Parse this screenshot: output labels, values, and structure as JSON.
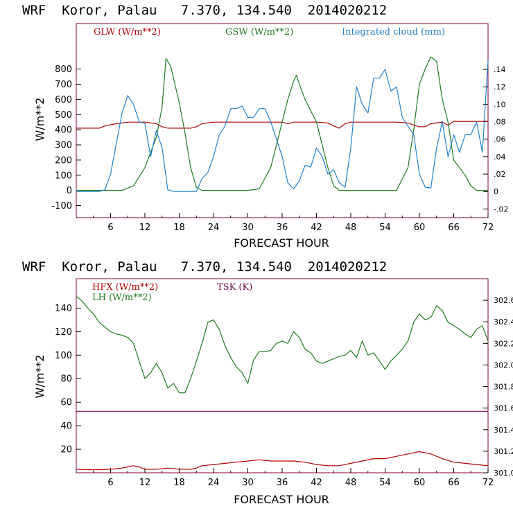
{
  "colors": {
    "red": "#b00000",
    "green": "#1f7a1f",
    "blue": "#2080d0",
    "purple": "#6a1050",
    "frame": "#800040"
  },
  "chart_data": [
    {
      "type": "line",
      "title": "WRF  Koror, Palau   7.370, 134.540  2014020212",
      "xlabel": "FORECAST HOUR",
      "ylabel": "W/m**2",
      "xlim": [
        0,
        72
      ],
      "ylim": [
        -180,
        1100
      ],
      "y2lim": [
        -0.03,
        0.1925
      ],
      "xticks": [
        6,
        12,
        18,
        24,
        30,
        36,
        42,
        48,
        54,
        60,
        66,
        72
      ],
      "yticks": [
        -100,
        0,
        100,
        200,
        300,
        400,
        500,
        600,
        700,
        800
      ],
      "y2ticks": [
        "-.02",
        "0",
        ".02",
        ".04",
        ".06",
        ".08",
        ".10",
        ".12",
        ".14"
      ],
      "series": [
        {
          "name": "GLW (W/m**2)",
          "color": "red",
          "axis": "left",
          "x": [
            0,
            4,
            5,
            7,
            9,
            12,
            13,
            14,
            15,
            16,
            20,
            21,
            22,
            24,
            30,
            36,
            37,
            38,
            42,
            44,
            45,
            46,
            47,
            48,
            56,
            58,
            59,
            60,
            61,
            62,
            64,
            65,
            66,
            72
          ],
          "y": [
            410,
            410,
            425,
            440,
            450,
            450,
            445,
            440,
            420,
            410,
            410,
            420,
            440,
            450,
            450,
            450,
            440,
            450,
            450,
            445,
            425,
            410,
            440,
            450,
            450,
            445,
            430,
            420,
            420,
            440,
            450,
            430,
            455,
            455
          ]
        },
        {
          "name": "GSW (W/m**2)",
          "color": "green",
          "axis": "left",
          "x": [
            0,
            6,
            8,
            10,
            12,
            13,
            14,
            15,
            15.7,
            16.5,
            18,
            19,
            20,
            21,
            22,
            30,
            32,
            34,
            35,
            36,
            37,
            38,
            38.5,
            39,
            40,
            42,
            43,
            44,
            45,
            46,
            54,
            56,
            58,
            59,
            60,
            61,
            62,
            63,
            64,
            65,
            66,
            68,
            69,
            70,
            72
          ],
          "y": [
            0,
            0,
            0,
            30,
            150,
            250,
            350,
            550,
            870,
            820,
            580,
            380,
            150,
            20,
            0,
            0,
            10,
            150,
            300,
            450,
            600,
            720,
            760,
            700,
            600,
            450,
            300,
            150,
            30,
            0,
            0,
            0,
            150,
            400,
            700,
            800,
            880,
            850,
            600,
            450,
            200,
            100,
            30,
            0,
            0
          ]
        },
        {
          "name": "Integrated cloud (mm)",
          "color": "blue",
          "axis": "right",
          "x": [
            0,
            4,
            5,
            6,
            7,
            8,
            9,
            10,
            11,
            12,
            13,
            14,
            15,
            16,
            17,
            18,
            20,
            21,
            22,
            23,
            24,
            25,
            26,
            27,
            28,
            29,
            30,
            31,
            32,
            33,
            34,
            35,
            36,
            37,
            38,
            39,
            40,
            41,
            42,
            43,
            44,
            45,
            46,
            47,
            48,
            49,
            50,
            51,
            52,
            53,
            54,
            55,
            56,
            57,
            58,
            59,
            60,
            61,
            62,
            63,
            64,
            65,
            66,
            67,
            68,
            69,
            70,
            71,
            72
          ],
          "y": [
            0,
            0,
            0.002,
            0.02,
            0.055,
            0.09,
            0.11,
            0.1,
            0.08,
            0.078,
            0.04,
            0.07,
            0.05,
            0.002,
            0,
            0,
            0,
            0,
            0.015,
            0.022,
            0.04,
            0.065,
            0.075,
            0.095,
            0.095,
            0.098,
            0.085,
            0.085,
            0.095,
            0.095,
            0.08,
            0.06,
            0.04,
            0.01,
            0.003,
            0.012,
            0.03,
            0.028,
            0.05,
            0.04,
            0.02,
            0.025,
            0.01,
            0.005,
            0.05,
            0.12,
            0.1,
            0.09,
            0.13,
            0.13,
            0.14,
            0.115,
            0.12,
            0.085,
            0.075,
            0.065,
            0.02,
            0.005,
            0.004,
            0.05,
            0.08,
            0.04,
            0.065,
            0.045,
            0.065,
            0.065,
            0.08,
            0.045,
            0.15
          ]
        }
      ]
    },
    {
      "type": "line",
      "title": "WRF  Koror, Palau   7.370, 134.540  2014020212",
      "xlabel": "FORECAST HOUR",
      "ylabel": "W/m**2",
      "xlim": [
        0,
        72
      ],
      "ylim": [
        0,
        165
      ],
      "y2lim": [
        301.0,
        302.8
      ],
      "xticks": [
        6,
        12,
        18,
        24,
        30,
        36,
        42,
        48,
        54,
        60,
        66,
        72
      ],
      "yticks": [
        20,
        40,
        60,
        80,
        100,
        120,
        140
      ],
      "y2ticks": [
        "301.0",
        "301.2",
        "301.4",
        "301.6",
        "301.8",
        "302.0",
        "302.2",
        "302.4",
        "302.6"
      ],
      "series": [
        {
          "name": "HFX (W/m**2)",
          "color": "red",
          "axis": "left",
          "x": [
            0,
            3,
            6,
            8,
            9,
            10,
            11,
            12,
            14,
            16,
            18,
            20,
            21,
            22,
            24,
            26,
            28,
            30,
            32,
            34,
            36,
            38,
            40,
            42,
            44,
            46,
            48,
            50,
            52,
            54,
            56,
            58,
            60,
            62,
            64,
            66,
            68,
            70,
            72
          ],
          "y": [
            3,
            2.5,
            3,
            4,
            5,
            6,
            5,
            3,
            3,
            4,
            3,
            3,
            4,
            6,
            7,
            8,
            9,
            10,
            11,
            10,
            10,
            10,
            9,
            7,
            6,
            6,
            8,
            10,
            12,
            12,
            14,
            16,
            18,
            16,
            12,
            9,
            8,
            7,
            6
          ]
        },
        {
          "name": "LH (W/m**2)",
          "color": "green",
          "axis": "left",
          "x": [
            0,
            1,
            2,
            3,
            4,
            5,
            6,
            7,
            8,
            9,
            10,
            11,
            12,
            13,
            14,
            15,
            16,
            17,
            18,
            19,
            20,
            21,
            22,
            23,
            24,
            25,
            26,
            27,
            28,
            29,
            30,
            31,
            32,
            33,
            34,
            35,
            36,
            37,
            38,
            39,
            40,
            41,
            42,
            43,
            44,
            45,
            46,
            47,
            48,
            49,
            50,
            51,
            52,
            53,
            54,
            55,
            56,
            57,
            58,
            59,
            60,
            61,
            62,
            63,
            64,
            65,
            66,
            67,
            68,
            69,
            70,
            71,
            72
          ],
          "y": [
            150,
            146,
            140,
            135,
            128,
            124,
            120,
            118,
            117,
            115,
            110,
            95,
            80,
            85,
            93,
            85,
            72,
            76,
            68,
            68,
            80,
            95,
            110,
            128,
            130,
            122,
            108,
            98,
            90,
            85,
            76,
            96,
            103,
            103,
            104,
            110,
            112,
            110,
            120,
            115,
            105,
            102,
            95,
            93,
            95,
            97,
            99,
            100,
            104,
            98,
            112,
            100,
            102,
            95,
            88,
            95,
            100,
            105,
            112,
            128,
            135,
            130,
            132,
            142,
            138,
            128,
            125,
            122,
            118,
            115,
            122,
            125,
            112
          ]
        },
        {
          "name": "TSK (K)",
          "color": "purple",
          "axis": "right",
          "x": [
            0,
            72
          ],
          "y": [
            301.57,
            301.57
          ]
        }
      ]
    }
  ]
}
